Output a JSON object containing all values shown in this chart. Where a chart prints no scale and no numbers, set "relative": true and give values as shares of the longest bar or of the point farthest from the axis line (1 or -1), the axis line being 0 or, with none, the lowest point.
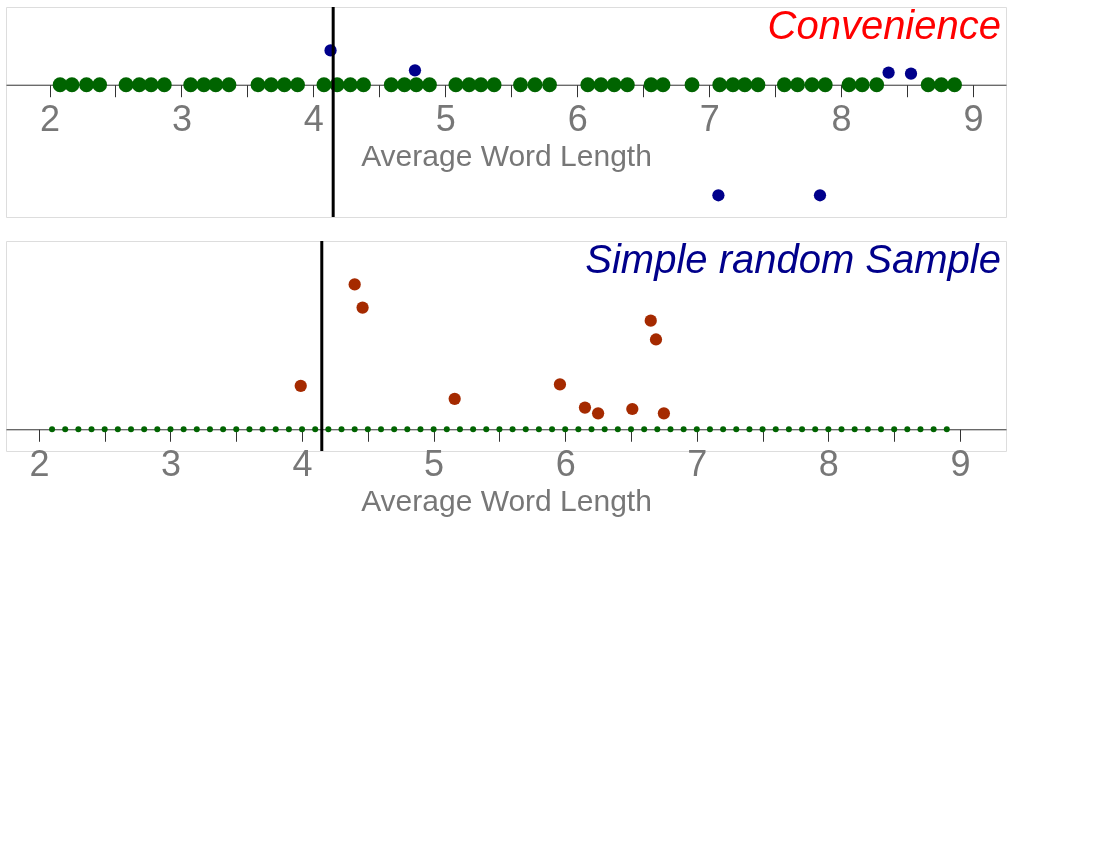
{
  "chart_data": [
    {
      "type": "scatter",
      "xlabel": "Average Word Length",
      "relative": true,
      "tick_labels": "x",
      "legend": false,
      "grid": false,
      "marker": "circle",
      "xlim": [
        1.67,
        9.25
      ],
      "xticks": [
        2,
        {
          "value": 2.5,
          "label": null
        },
        3,
        {
          "value": 3.5,
          "label": null
        },
        4,
        {
          "value": 4.5,
          "label": null
        },
        5,
        {
          "value": 5.5,
          "label": null
        },
        6,
        {
          "value": 6.5,
          "label": null
        },
        7,
        {
          "value": 7.5,
          "label": null
        },
        8,
        {
          "value": 8.5,
          "label": null
        },
        9
      ],
      "series": [
        {
          "color": "#006400",
          "x": [
            2.08,
            2.17,
            2.28,
            2.38,
            2.58,
            2.68,
            2.77,
            2.87,
            3.07,
            3.17,
            3.26,
            3.36,
            3.58,
            3.68,
            3.78,
            3.88,
            4.08,
            4.18,
            4.28,
            4.38,
            4.59,
            4.69,
            4.78,
            4.88,
            5.08,
            5.18,
            5.27,
            5.37,
            5.57,
            5.68,
            5.79,
            6.08,
            6.18,
            6.28,
            6.38,
            6.56,
            6.65,
            6.87,
            7.08,
            7.18,
            7.27,
            7.37,
            7.57,
            7.67,
            7.78,
            7.88,
            8.06,
            8.16,
            8.27,
            8.66,
            8.76,
            8.86
          ],
          "values": [
            0,
            0,
            0,
            0,
            0,
            0,
            0,
            0,
            0,
            0,
            0,
            0,
            0,
            0,
            0,
            0,
            0,
            0,
            0,
            0,
            0,
            0,
            0,
            0,
            0,
            0,
            0,
            0,
            0,
            0,
            0,
            0,
            0,
            0,
            0,
            0,
            0,
            0,
            0,
            0,
            0,
            0,
            0,
            0,
            0,
            0,
            0,
            0,
            0,
            0,
            0,
            0
          ]
        },
        {
          "color": "#00008b",
          "x": [
            4.13,
            4.77,
            8.36,
            8.53,
            7.07,
            7.84
          ],
          "values": [
            0.31,
            0.13,
            0.11,
            0.1,
            -1,
            -1
          ]
        }
      ],
      "ref_lines": [
        {
          "axis": "x",
          "value": 4.15,
          "color": "#000000"
        }
      ],
      "annotations": [
        "Convenience"
      ]
    },
    {
      "type": "scatter",
      "xlabel": "Average Word Length",
      "relative": true,
      "tick_labels": "x",
      "legend": false,
      "grid": false,
      "marker": "circle",
      "xlim": [
        1.75,
        9.35
      ],
      "xticks": [
        2,
        {
          "value": 2.5,
          "label": null
        },
        3,
        {
          "value": 3.5,
          "label": null
        },
        4,
        {
          "value": 4.5,
          "label": null
        },
        5,
        {
          "value": 5.5,
          "label": null
        },
        6,
        {
          "value": 6.5,
          "label": null
        },
        7,
        {
          "value": 7.5,
          "label": null
        },
        8,
        {
          "value": 8.5,
          "label": null
        },
        9
      ],
      "series": [
        {
          "color": "#006400",
          "x": [
            2.1,
            2.2,
            2.3,
            2.4,
            2.5,
            2.6,
            2.7,
            2.8,
            2.9,
            3.0,
            3.1,
            3.2,
            3.3,
            3.4,
            3.5,
            3.6,
            3.7,
            3.8,
            3.9,
            4.0,
            4.1,
            4.2,
            4.3,
            4.4,
            4.5,
            4.6,
            4.7,
            4.8,
            4.9,
            5.0,
            5.1,
            5.2,
            5.3,
            5.4,
            5.5,
            5.6,
            5.7,
            5.8,
            5.9,
            6.0,
            6.1,
            6.2,
            6.3,
            6.4,
            6.5,
            6.6,
            6.7,
            6.8,
            6.9,
            7.0,
            7.1,
            7.2,
            7.3,
            7.4,
            7.5,
            7.6,
            7.7,
            7.8,
            7.9,
            8.0,
            8.1,
            8.2,
            8.3,
            8.4,
            8.5,
            8.6,
            8.7,
            8.8,
            8.9
          ],
          "values": [
            0,
            0,
            0,
            0,
            0,
            0,
            0,
            0,
            0,
            0,
            0,
            0,
            0,
            0,
            0,
            0,
            0,
            0,
            0,
            0,
            0,
            0,
            0,
            0,
            0,
            0,
            0,
            0,
            0,
            0,
            0,
            0,
            0,
            0,
            0,
            0,
            0,
            0,
            0,
            0,
            0,
            0,
            0,
            0,
            0,
            0,
            0,
            0,
            0,
            0,
            0,
            0,
            0,
            0,
            0,
            0,
            0,
            0,
            0,
            0,
            0,
            0,
            0,
            0,
            0,
            0,
            0,
            0,
            0
          ]
        },
        {
          "color": "#a52a00",
          "x": [
            3.99,
            4.4,
            4.46,
            5.16,
            5.96,
            6.15,
            6.25,
            6.51,
            6.65,
            6.69,
            6.75
          ],
          "values": [
            0.3,
            1,
            0.84,
            0.21,
            0.31,
            0.15,
            0.11,
            0.14,
            0.75,
            0.62,
            0.11
          ]
        }
      ],
      "ref_lines": [
        {
          "axis": "x",
          "value": 4.15,
          "color": "#000000"
        }
      ],
      "annotations": [
        "Simple random Sample"
      ]
    }
  ]
}
